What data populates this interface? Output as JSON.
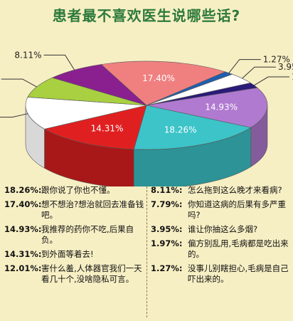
{
  "title": "患者最不喜欢医生说哪些话?",
  "chart_data": {
    "type": "pie",
    "title": "患者最不喜欢医生说哪些话?",
    "slices": [
      {
        "label": "17.40%",
        "value": 17.4,
        "color": "#f08080",
        "text": "想不想治?想治就回去准备钱吧。"
      },
      {
        "label": "1.27%",
        "value": 1.27,
        "color": "#1f5fb0",
        "text": "没事儿别瞎担心,毛病是自己吓出来的。"
      },
      {
        "label": "3.95%",
        "value": 3.95,
        "color": "#ffffff",
        "text": "谁让你抽这么多烟?"
      },
      {
        "label": "1.97%",
        "value": 1.97,
        "color": "#2a1a7a",
        "text": "偏方别乱用,毛病都是吃出来的。"
      },
      {
        "label": "14.93%",
        "value": 14.93,
        "color": "#b07ad0",
        "text": "我推荐的药你不吃,后果自负。"
      },
      {
        "label": "18.26%",
        "value": 18.26,
        "color": "#3cc4c8",
        "text": "跟你说了你也不懂。"
      },
      {
        "label": "14.31%",
        "value": 14.31,
        "color": "#e02020",
        "text": "到外面等着去!"
      },
      {
        "label": "12.01%",
        "value": 12.01,
        "color": "#ffffff",
        "text": "害什么羞,人体器官我们一天看几十个,没啥隐私可言。"
      },
      {
        "label": "7.79%",
        "value": 7.79,
        "color": "#a8d040",
        "text": "你知道这病的后果有多严重吗?"
      },
      {
        "label": "8.11%",
        "value": 8.11,
        "color": "#8a2090",
        "text": "怎么拖到这么晚才来看病?"
      }
    ]
  },
  "legend": {
    "left": [
      {
        "pct": "18.26%:",
        "text": "跟你说了你也不懂。"
      },
      {
        "pct": "17.40%:",
        "text": "想不想治?想治就回去准备钱吧。"
      },
      {
        "pct": "14.93%:",
        "text": "我推荐的药你不吃,后果自负。"
      },
      {
        "pct": "14.31%:",
        "text": "到外面等着去!"
      },
      {
        "pct": "12.01%:",
        "text": "害什么羞,人体器官我们一天看几十个,没啥隐私可言。"
      }
    ],
    "right": [
      {
        "pct": "8.11%:",
        "text": "怎么拖到这么晚才来看病?"
      },
      {
        "pct": "7.79%:",
        "text": "你知道这病的后果有多严重吗?"
      },
      {
        "pct": "3.95%:",
        "text": "谁让你抽这么多烟?"
      },
      {
        "pct": "1.97%:",
        "text": "偏方别乱用,毛病都是吃出来的。"
      },
      {
        "pct": "1.27%:",
        "text": "没事儿别瞎担心,毛病是自己吓出来的。"
      }
    ]
  }
}
